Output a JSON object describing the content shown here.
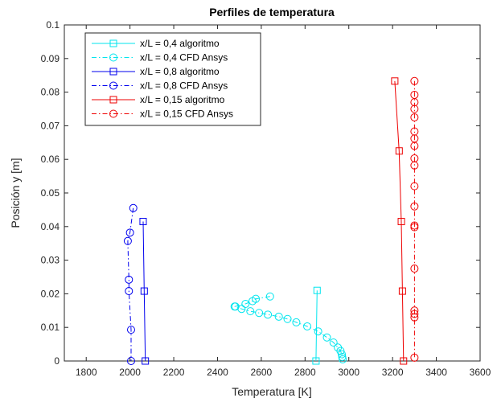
{
  "chart_data": {
    "type": "line",
    "title": "Perfiles de temperatura",
    "xlabel": "Temperatura [K]",
    "ylabel": "Posición y [m]",
    "xlim": [
      1700,
      3600
    ],
    "ylim": [
      0,
      0.1
    ],
    "xticks": [
      1800,
      2000,
      2200,
      2400,
      2600,
      2800,
      3000,
      3200,
      3400,
      3600
    ],
    "xtick_labels": [
      "1800",
      "2000",
      "2200",
      "2400",
      "2600",
      "2800",
      "3000",
      "3200",
      "3400",
      "3600"
    ],
    "yticks": [
      0,
      0.01,
      0.02,
      0.03,
      0.04,
      0.05,
      0.06,
      0.07,
      0.08,
      0.09,
      0.1
    ],
    "ytick_labels": [
      "0",
      "0.01",
      "0.02",
      "0.03",
      "0.04",
      "0.05",
      "0.06",
      "0.07",
      "0.08",
      "0.09",
      "0.1"
    ],
    "grid": false,
    "legend_position": "top-left",
    "series": [
      {
        "name": "x/L = 0,4 algoritmo",
        "color": "#00e5ee",
        "line_style": "solid",
        "marker": "square",
        "x": [
          2850,
          2855
        ],
        "y": [
          0,
          0.021
        ]
      },
      {
        "name": "x/L = 0,4 CFD Ansys",
        "color": "#00e5ee",
        "line_style": "dashdot",
        "marker": "circle",
        "x": [
          2640,
          2575,
          2560,
          2528,
          2478,
          2482,
          2510,
          2550,
          2590,
          2630,
          2680,
          2720,
          2760,
          2810,
          2860,
          2900,
          2930,
          2950,
          2962,
          2968,
          2970,
          2972
        ],
        "y": [
          0.0192,
          0.0185,
          0.0178,
          0.017,
          0.0162,
          0.0162,
          0.0155,
          0.0148,
          0.0143,
          0.0138,
          0.0132,
          0.0125,
          0.0115,
          0.0103,
          0.0088,
          0.007,
          0.0055,
          0.004,
          0.003,
          0.002,
          0.0012,
          0.0005
        ]
      },
      {
        "name": "x/L = 0,8 algoritmo",
        "color": "#0000ee",
        "line_style": "solid",
        "marker": "square",
        "x": [
          2060,
          2065,
          2070
        ],
        "y": [
          0.0415,
          0.0208,
          0
        ]
      },
      {
        "name": "x/L = 0,8 CFD Ansys",
        "color": "#0000ee",
        "line_style": "dashdot",
        "marker": "circle",
        "x": [
          2015,
          2000,
          1990,
          1995,
          1995,
          2005,
          2005
        ],
        "y": [
          0.0455,
          0.0382,
          0.0357,
          0.0242,
          0.0208,
          0.0093,
          0
        ]
      },
      {
        "name": "x/L = 0,15 algoritmo",
        "color": "#ee0000",
        "line_style": "solid",
        "marker": "square",
        "x": [
          3210,
          3230,
          3240,
          3245,
          3250
        ],
        "y": [
          0.0833,
          0.0625,
          0.0415,
          0.0208,
          0
        ]
      },
      {
        "name": "x/L = 0,15 CFD Ansys",
        "color": "#ee0000",
        "line_style": "dashdot",
        "marker": "circle",
        "x": [
          3300,
          3300,
          3300,
          3300,
          3300,
          3300,
          3300,
          3300,
          3300,
          3300,
          3300,
          3300,
          3300,
          3300,
          3300,
          3300,
          3300,
          3300,
          3300
        ],
        "y": [
          0.0833,
          0.0792,
          0.077,
          0.075,
          0.0725,
          0.0683,
          0.0662,
          0.064,
          0.0603,
          0.0582,
          0.052,
          0.046,
          0.0403,
          0.0398,
          0.0275,
          0.015,
          0.014,
          0.013,
          0.001
        ]
      }
    ]
  }
}
